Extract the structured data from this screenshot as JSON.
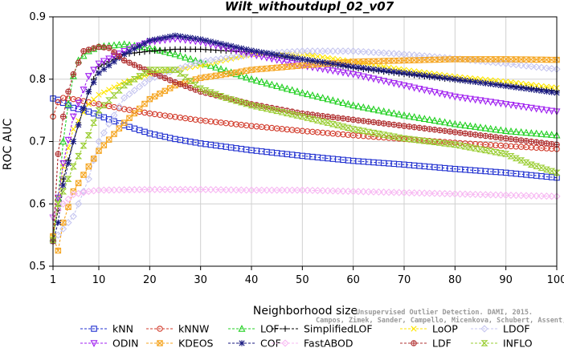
{
  "chart_data": {
    "type": "line",
    "title": "Wilt_withoutdupl_02_v07",
    "xlabel": "Neighborhood size",
    "ylabel": "ROC AUC",
    "xlim": [
      1,
      100
    ],
    "ylim": [
      0.5,
      0.9
    ],
    "xticks": [
      1,
      10,
      20,
      30,
      40,
      50,
      60,
      70,
      80,
      90,
      100
    ],
    "yticks": [
      0.5,
      0.6,
      0.7,
      0.8,
      0.9
    ],
    "grid": true,
    "legend_position": "bottom",
    "watermark": [
      "Unsupervised Outlier Detection. DAMI, 2015.",
      "Campos, Zimek, Sander, Campello, Micenkova, Schubert, Assent, Houle"
    ],
    "series": [
      {
        "name": "kNN",
        "color": "#1f2fd0",
        "marker": "square",
        "dash": "3,2",
        "points": [
          [
            1,
            0.769
          ],
          [
            2,
            0.767
          ],
          [
            3,
            0.762
          ],
          [
            5,
            0.754
          ],
          [
            8,
            0.748
          ],
          [
            10,
            0.742
          ],
          [
            15,
            0.726
          ],
          [
            20,
            0.713
          ],
          [
            25,
            0.704
          ],
          [
            30,
            0.697
          ],
          [
            40,
            0.686
          ],
          [
            50,
            0.677
          ],
          [
            60,
            0.669
          ],
          [
            70,
            0.663
          ],
          [
            80,
            0.656
          ],
          [
            90,
            0.65
          ],
          [
            100,
            0.642
          ]
        ]
      },
      {
        "name": "kNNW",
        "color": "#d23a2a",
        "marker": "circle",
        "dash": "3,2",
        "points": [
          [
            1,
            0.74
          ],
          [
            2,
            0.763
          ],
          [
            3,
            0.77
          ],
          [
            5,
            0.768
          ],
          [
            10,
            0.76
          ],
          [
            15,
            0.752
          ],
          [
            20,
            0.745
          ],
          [
            30,
            0.734
          ],
          [
            40,
            0.725
          ],
          [
            50,
            0.717
          ],
          [
            60,
            0.71
          ],
          [
            70,
            0.704
          ],
          [
            80,
            0.698
          ],
          [
            90,
            0.693
          ],
          [
            100,
            0.688
          ]
        ]
      },
      {
        "name": "LOF",
        "color": "#22d022",
        "marker": "triangle",
        "dash": "3,2",
        "points": [
          [
            1,
            0.545
          ],
          [
            2,
            0.61
          ],
          [
            3,
            0.7
          ],
          [
            4,
            0.76
          ],
          [
            5,
            0.805
          ],
          [
            6,
            0.83
          ],
          [
            8,
            0.845
          ],
          [
            10,
            0.852
          ],
          [
            15,
            0.856
          ],
          [
            20,
            0.85
          ],
          [
            25,
            0.84
          ],
          [
            30,
            0.827
          ],
          [
            40,
            0.8
          ],
          [
            50,
            0.778
          ],
          [
            60,
            0.758
          ],
          [
            70,
            0.742
          ],
          [
            80,
            0.728
          ],
          [
            90,
            0.717
          ],
          [
            100,
            0.71
          ]
        ]
      },
      {
        "name": "SimplifiedLOF",
        "color": "#000000",
        "marker": "plus",
        "dash": "3,2",
        "points": [
          [
            1,
            0.55
          ],
          [
            2,
            0.59
          ],
          [
            3,
            0.64
          ],
          [
            5,
            0.7
          ],
          [
            8,
            0.78
          ],
          [
            10,
            0.82
          ],
          [
            15,
            0.84
          ],
          [
            20,
            0.845
          ],
          [
            25,
            0.848
          ],
          [
            30,
            0.848
          ],
          [
            40,
            0.843
          ],
          [
            50,
            0.832
          ],
          [
            60,
            0.818
          ],
          [
            70,
            0.808
          ],
          [
            80,
            0.799
          ],
          [
            90,
            0.79
          ],
          [
            100,
            0.781
          ]
        ]
      },
      {
        "name": "LoOP",
        "color": "#ffe600",
        "marker": "cross",
        "dash": "3,2",
        "points": [
          [
            1,
            0.547
          ],
          [
            2,
            0.6
          ],
          [
            3,
            0.66
          ],
          [
            5,
            0.72
          ],
          [
            8,
            0.76
          ],
          [
            10,
            0.775
          ],
          [
            15,
            0.795
          ],
          [
            20,
            0.808
          ],
          [
            25,
            0.815
          ],
          [
            30,
            0.822
          ],
          [
            40,
            0.84
          ],
          [
            50,
            0.84
          ],
          [
            60,
            0.828
          ],
          [
            70,
            0.815
          ],
          [
            80,
            0.804
          ],
          [
            90,
            0.796
          ],
          [
            100,
            0.786
          ]
        ]
      },
      {
        "name": "LDOF",
        "color": "#c6c6f0",
        "marker": "diamond",
        "dash": "3,2",
        "points": [
          [
            1,
            0.54
          ],
          [
            3,
            0.56
          ],
          [
            5,
            0.58
          ],
          [
            8,
            0.64
          ],
          [
            10,
            0.7
          ],
          [
            15,
            0.77
          ],
          [
            20,
            0.8
          ],
          [
            25,
            0.815
          ],
          [
            30,
            0.828
          ],
          [
            40,
            0.84
          ],
          [
            50,
            0.845
          ],
          [
            60,
            0.845
          ],
          [
            70,
            0.84
          ],
          [
            80,
            0.833
          ],
          [
            90,
            0.825
          ],
          [
            100,
            0.816
          ]
        ]
      },
      {
        "name": "ODIN",
        "color": "#a020f0",
        "marker": "triangle-down",
        "dash": "3,2",
        "points": [
          [
            1,
            0.578
          ],
          [
            2,
            0.61
          ],
          [
            3,
            0.665
          ],
          [
            5,
            0.74
          ],
          [
            8,
            0.805
          ],
          [
            10,
            0.825
          ],
          [
            15,
            0.845
          ],
          [
            20,
            0.86
          ],
          [
            25,
            0.865
          ],
          [
            30,
            0.86
          ],
          [
            35,
            0.85
          ],
          [
            40,
            0.84
          ],
          [
            50,
            0.822
          ],
          [
            60,
            0.808
          ],
          [
            70,
            0.79
          ],
          [
            80,
            0.772
          ],
          [
            90,
            0.76
          ],
          [
            100,
            0.748
          ]
        ]
      },
      {
        "name": "KDEOS",
        "color": "#f5a623",
        "marker": "square-x",
        "dash": "3,2",
        "points": [
          [
            1,
            0.548
          ],
          [
            2,
            0.525
          ],
          [
            3,
            0.57
          ],
          [
            5,
            0.62
          ],
          [
            8,
            0.66
          ],
          [
            10,
            0.685
          ],
          [
            15,
            0.73
          ],
          [
            20,
            0.768
          ],
          [
            25,
            0.79
          ],
          [
            30,
            0.802
          ],
          [
            35,
            0.808
          ],
          [
            40,
            0.815
          ],
          [
            50,
            0.822
          ],
          [
            60,
            0.828
          ],
          [
            70,
            0.83
          ],
          [
            80,
            0.832
          ],
          [
            90,
            0.832
          ],
          [
            100,
            0.831
          ]
        ]
      },
      {
        "name": "COF",
        "color": "#1a1a80",
        "marker": "asterisk",
        "dash": "3,2",
        "points": [
          [
            1,
            0.54
          ],
          [
            2,
            0.57
          ],
          [
            3,
            0.63
          ],
          [
            5,
            0.7
          ],
          [
            8,
            0.78
          ],
          [
            10,
            0.81
          ],
          [
            15,
            0.84
          ],
          [
            20,
            0.862
          ],
          [
            25,
            0.87
          ],
          [
            30,
            0.864
          ],
          [
            35,
            0.855
          ],
          [
            40,
            0.846
          ],
          [
            50,
            0.832
          ],
          [
            60,
            0.82
          ],
          [
            70,
            0.81
          ],
          [
            80,
            0.8
          ],
          [
            90,
            0.789
          ],
          [
            100,
            0.778
          ]
        ]
      },
      {
        "name": "FastABOD",
        "color": "#f7b8f2",
        "marker": "diamond",
        "dash": "3,2",
        "points": [
          [
            1,
            0.58
          ],
          [
            3,
            0.6
          ],
          [
            5,
            0.615
          ],
          [
            8,
            0.62
          ],
          [
            10,
            0.622
          ],
          [
            20,
            0.623
          ],
          [
            30,
            0.623
          ],
          [
            40,
            0.622
          ],
          [
            50,
            0.622
          ],
          [
            60,
            0.62
          ],
          [
            70,
            0.618
          ],
          [
            80,
            0.616
          ],
          [
            90,
            0.614
          ],
          [
            100,
            0.612
          ]
        ]
      },
      {
        "name": "LDF",
        "color": "#b03030",
        "marker": "circle-plus",
        "dash": "3,2",
        "points": [
          [
            1,
            0.54
          ],
          [
            2,
            0.68
          ],
          [
            3,
            0.74
          ],
          [
            4,
            0.78
          ],
          [
            5,
            0.808
          ],
          [
            7,
            0.845
          ],
          [
            10,
            0.852
          ],
          [
            12,
            0.85
          ],
          [
            15,
            0.83
          ],
          [
            20,
            0.812
          ],
          [
            25,
            0.795
          ],
          [
            30,
            0.78
          ],
          [
            40,
            0.76
          ],
          [
            50,
            0.745
          ],
          [
            60,
            0.735
          ],
          [
            70,
            0.725
          ],
          [
            80,
            0.715
          ],
          [
            90,
            0.705
          ],
          [
            100,
            0.695
          ]
        ]
      },
      {
        "name": "INFLO",
        "color": "#9acd32",
        "marker": "hourglass",
        "dash": "3,2",
        "points": [
          [
            1,
            0.542
          ],
          [
            2,
            0.6
          ],
          [
            3,
            0.62
          ],
          [
            5,
            0.66
          ],
          [
            8,
            0.71
          ],
          [
            10,
            0.75
          ],
          [
            15,
            0.79
          ],
          [
            20,
            0.815
          ],
          [
            25,
            0.815
          ],
          [
            30,
            0.785
          ],
          [
            35,
            0.77
          ],
          [
            40,
            0.758
          ],
          [
            50,
            0.74
          ],
          [
            60,
            0.72
          ],
          [
            70,
            0.705
          ],
          [
            80,
            0.695
          ],
          [
            90,
            0.68
          ],
          [
            95,
            0.663
          ],
          [
            100,
            0.65
          ]
        ]
      }
    ]
  }
}
